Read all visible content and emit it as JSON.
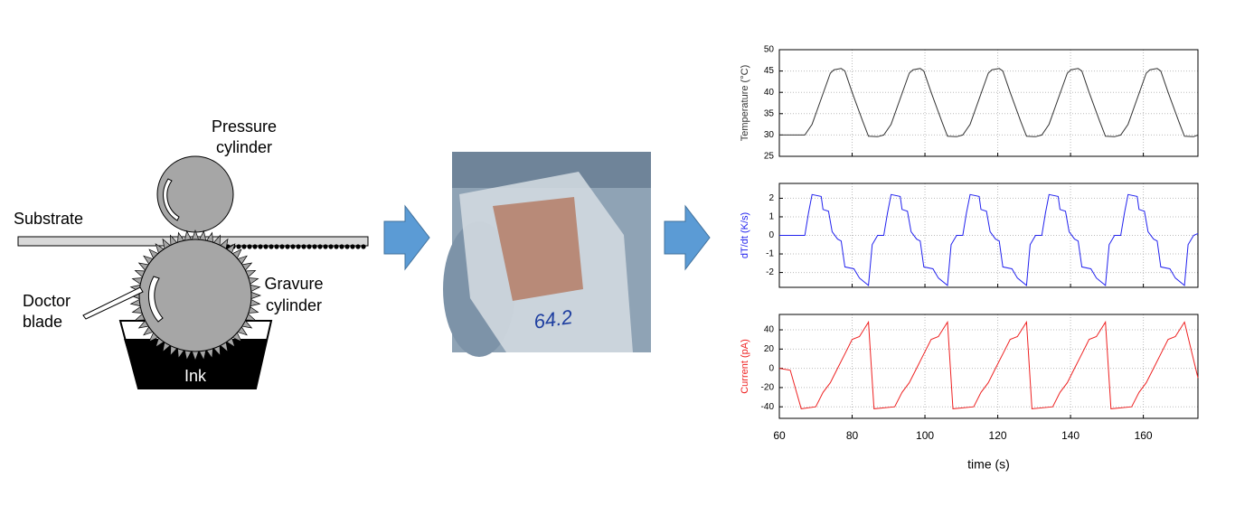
{
  "diagram": {
    "pressure_cylinder": [
      "Pressure",
      "cylinder"
    ],
    "substrate": "Substrate",
    "doctor_blade": [
      "Doctor",
      "blade"
    ],
    "gravure_cylinder": [
      "Gravure",
      "cylinder"
    ],
    "ink": "Ink",
    "sample_label": "64.2"
  },
  "chart_data": [
    {
      "type": "line",
      "ylabel": "Temperature (°C)",
      "color": "#333333",
      "grid": true,
      "xlim": [
        60,
        175
      ],
      "xticks": [
        60,
        80,
        100,
        120,
        140,
        160
      ],
      "ylim": [
        25,
        50
      ],
      "yticks": [
        25,
        30,
        35,
        40,
        45,
        50
      ],
      "x": [
        60,
        67,
        69,
        74,
        75,
        77,
        78,
        80,
        83,
        84.5,
        87,
        88.7,
        90.7,
        95.7,
        96.7,
        98.7,
        99.7,
        101.7,
        104.7,
        106.2,
        108.7,
        110.4,
        112.4,
        117.4,
        118.4,
        120.4,
        121.4,
        123.4,
        126.4,
        127.9,
        130.4,
        132.1,
        134.1,
        139.1,
        140.1,
        142.1,
        143.1,
        145.1,
        148.1,
        149.6,
        152.1,
        153.8,
        155.8,
        160.8,
        161.8,
        163.8,
        164.8,
        166.8,
        169.8,
        171.3,
        173.8,
        175
      ],
      "values": [
        30,
        30,
        32.5,
        44.5,
        45.3,
        45.6,
        45,
        40,
        33,
        29.7,
        29.6,
        30,
        32.5,
        44.5,
        45.3,
        45.6,
        45,
        40,
        33,
        29.7,
        29.6,
        30,
        32.5,
        44.5,
        45.3,
        45.6,
        45,
        40,
        33,
        29.7,
        29.6,
        30,
        32.5,
        44.5,
        45.3,
        45.6,
        45,
        40,
        33,
        29.7,
        29.6,
        30,
        32.5,
        44.5,
        45.3,
        45.6,
        45,
        40,
        33,
        29.7,
        29.6,
        30
      ]
    },
    {
      "type": "line",
      "ylabel": "dT/dt (K/s)",
      "color": "#2222ee",
      "grid": true,
      "xlim": [
        60,
        175
      ],
      "xticks": [
        60,
        80,
        100,
        120,
        140,
        160
      ],
      "ylim": [
        -2.8,
        2.8
      ],
      "yticks": [
        -2,
        -1,
        0,
        1,
        2
      ],
      "x": [
        60,
        67,
        68,
        69,
        71.5,
        72,
        73.5,
        74.5,
        76,
        77,
        78,
        80.5,
        82,
        84.5,
        85.5,
        87,
        88.7,
        89.7,
        90.7,
        93.2,
        93.7,
        95.2,
        96.2,
        97.7,
        98.7,
        99.7,
        102.2,
        103.7,
        106.2,
        107.2,
        108.7,
        110.4,
        111.4,
        112.4,
        114.9,
        115.4,
        116.9,
        117.9,
        119.4,
        120.4,
        121.4,
        123.9,
        125.4,
        127.9,
        128.9,
        130.4,
        132.1,
        133.1,
        134.1,
        136.6,
        137.1,
        138.6,
        139.6,
        141.1,
        142.1,
        143.1,
        145.6,
        147.1,
        149.6,
        150.6,
        152.1,
        153.8,
        154.8,
        155.8,
        158.3,
        158.8,
        160.3,
        161.3,
        162.8,
        163.8,
        164.8,
        167.3,
        168.8,
        171.3,
        172.3,
        173.8,
        175
      ],
      "values": [
        0,
        0,
        1.2,
        2.2,
        2.1,
        1.4,
        1.3,
        0.2,
        -0.2,
        -0.3,
        -1.7,
        -1.8,
        -2.3,
        -2.7,
        -0.5,
        0,
        0,
        1.2,
        2.2,
        2.1,
        1.4,
        1.3,
        0.2,
        -0.2,
        -0.3,
        -1.7,
        -1.8,
        -2.3,
        -2.7,
        -0.5,
        0,
        0,
        1.2,
        2.2,
        2.1,
        1.4,
        1.3,
        0.2,
        -0.2,
        -0.3,
        -1.7,
        -1.8,
        -2.3,
        -2.7,
        -0.5,
        0,
        0,
        1.2,
        2.2,
        2.1,
        1.4,
        1.3,
        0.2,
        -0.2,
        -0.3,
        -1.7,
        -1.8,
        -2.3,
        -2.7,
        -0.5,
        0,
        0,
        1.2,
        2.2,
        2.1,
        1.4,
        1.3,
        0.2,
        -0.2,
        -0.3,
        -1.7,
        -1.8,
        -2.3,
        -2.7,
        -0.5,
        0,
        0.1
      ]
    },
    {
      "type": "line",
      "ylabel": "Current (pA)",
      "xlabel": "time (s)",
      "color": "#ee2222",
      "grid": true,
      "xlim": [
        60,
        175
      ],
      "xticks": [
        60,
        80,
        100,
        120,
        140,
        160
      ],
      "ylim": [
        -52,
        56
      ],
      "yticks": [
        -40,
        -20,
        0,
        20,
        40
      ],
      "x": [
        60,
        63,
        66,
        70,
        72,
        74,
        76,
        78,
        80,
        82,
        84.5,
        86,
        91.7,
        93.7,
        95.7,
        97.7,
        99.7,
        101.7,
        103.7,
        106.2,
        107.7,
        113.4,
        115.4,
        117.4,
        119.4,
        121.4,
        123.4,
        125.4,
        127.9,
        129.4,
        135.1,
        137.1,
        139.1,
        141.1,
        143.1,
        145.1,
        147.1,
        149.6,
        151.1,
        156.8,
        158.8,
        160.8,
        162.8,
        164.8,
        166.8,
        168.8,
        171.3,
        175
      ],
      "values": [
        0,
        -2,
        -42,
        -40,
        -25,
        -15,
        0,
        15,
        30,
        33,
        48,
        -42,
        -40,
        -25,
        -15,
        0,
        15,
        30,
        33,
        48,
        -42,
        -40,
        -25,
        -15,
        0,
        15,
        30,
        33,
        48,
        -42,
        -40,
        -25,
        -15,
        0,
        15,
        30,
        33,
        48,
        -42,
        -40,
        -25,
        -15,
        0,
        15,
        30,
        33,
        48,
        -10
      ]
    }
  ]
}
